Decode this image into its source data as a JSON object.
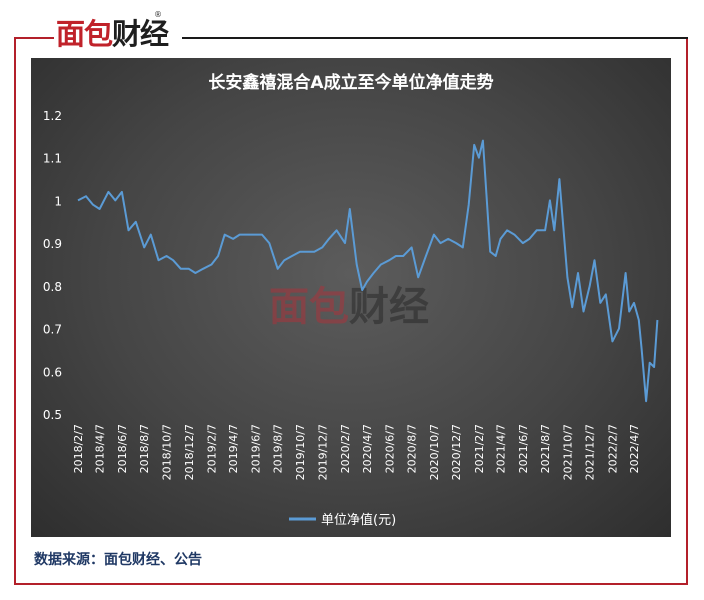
{
  "logo": {
    "part1": "面包",
    "part2": "财经",
    "reg": "®"
  },
  "watermark": {
    "part1": "面包",
    "part2": "财经"
  },
  "source_text": "数据来源：面包财经、公告",
  "colors": {
    "line": "#5b9bd5",
    "frame": "#b3202a",
    "accent": "#c0222a"
  },
  "chart_data": {
    "type": "line",
    "title": "长安鑫禧混合A成立至今单位净值走势",
    "xlabel": "",
    "ylabel": "",
    "ylim": [
      0.5,
      1.2
    ],
    "yticks": [
      "0.5",
      "0.6",
      "0.7",
      "0.8",
      "0.9",
      "1",
      "1.1",
      "1.2"
    ],
    "grid": false,
    "legend_position": "bottom",
    "xticks": [
      "2018/2/7",
      "2018/4/7",
      "2018/6/7",
      "2018/8/7",
      "2018/10/7",
      "2018/12/7",
      "2019/2/7",
      "2019/4/7",
      "2019/6/7",
      "2019/8/7",
      "2019/10/7",
      "2019/12/7",
      "2020/2/7",
      "2020/4/7",
      "2020/6/7",
      "2020/8/7",
      "2020/10/7",
      "2020/12/7",
      "2021/2/7",
      "2021/4/7",
      "2021/6/7",
      "2021/8/7",
      "2021/10/7",
      "2021/12/7",
      "2022/2/7",
      "2022/4/7"
    ],
    "series": [
      {
        "name": "单位净值(元)",
        "x": [
          "2018/2/7",
          "2018/3/1",
          "2018/3/20",
          "2018/4/7",
          "2018/5/1",
          "2018/5/20",
          "2018/6/7",
          "2018/6/25",
          "2018/7/15",
          "2018/8/7",
          "2018/8/25",
          "2018/9/15",
          "2018/10/7",
          "2018/10/25",
          "2018/11/15",
          "2018/12/7",
          "2018/12/25",
          "2019/1/15",
          "2019/2/7",
          "2019/2/25",
          "2019/3/15",
          "2019/4/7",
          "2019/4/25",
          "2019/5/15",
          "2019/6/7",
          "2019/6/25",
          "2019/7/15",
          "2019/8/7",
          "2019/8/25",
          "2019/9/15",
          "2019/10/7",
          "2019/10/25",
          "2019/11/15",
          "2019/12/7",
          "2019/12/25",
          "2020/1/15",
          "2020/2/7",
          "2020/2/20",
          "2020/3/10",
          "2020/3/25",
          "2020/4/7",
          "2020/4/25",
          "2020/5/15",
          "2020/6/7",
          "2020/6/25",
          "2020/7/15",
          "2020/8/7",
          "2020/8/25",
          "2020/9/15",
          "2020/10/7",
          "2020/10/25",
          "2020/11/15",
          "2020/12/7",
          "2020/12/25",
          "2021/1/10",
          "2021/1/25",
          "2021/2/7",
          "2021/2/18",
          "2021/3/10",
          "2021/3/25",
          "2021/4/7",
          "2021/4/25",
          "2021/5/15",
          "2021/6/7",
          "2021/6/25",
          "2021/7/15",
          "2021/8/7",
          "2021/8/20",
          "2021/9/1",
          "2021/9/15",
          "2021/10/7",
          "2021/10/20",
          "2021/11/5",
          "2021/11/20",
          "2021/12/7",
          "2021/12/20",
          "2022/1/5",
          "2022/1/20",
          "2022/2/7",
          "2022/2/25",
          "2022/3/15",
          "2022/3/25",
          "2022/4/7",
          "2022/4/20",
          "2022/4/28",
          "2022/5/10",
          "2022/5/20",
          "2022/6/1",
          "2022/6/10"
        ],
        "values": [
          1.0,
          1.01,
          0.99,
          0.98,
          1.02,
          1.0,
          1.02,
          0.93,
          0.95,
          0.89,
          0.92,
          0.86,
          0.87,
          0.86,
          0.84,
          0.84,
          0.83,
          0.84,
          0.85,
          0.87,
          0.92,
          0.91,
          0.92,
          0.92,
          0.92,
          0.92,
          0.9,
          0.84,
          0.86,
          0.87,
          0.88,
          0.88,
          0.88,
          0.89,
          0.91,
          0.93,
          0.9,
          0.98,
          0.85,
          0.79,
          0.81,
          0.83,
          0.85,
          0.86,
          0.87,
          0.87,
          0.89,
          0.82,
          0.87,
          0.92,
          0.9,
          0.91,
          0.9,
          0.89,
          0.99,
          1.13,
          1.1,
          1.14,
          0.88,
          0.87,
          0.91,
          0.93,
          0.92,
          0.9,
          0.91,
          0.93,
          0.93,
          1.0,
          0.93,
          1.05,
          0.82,
          0.75,
          0.83,
          0.74,
          0.8,
          0.86,
          0.76,
          0.78,
          0.67,
          0.7,
          0.83,
          0.74,
          0.76,
          0.72,
          0.65,
          0.53,
          0.62,
          0.61,
          0.72
        ]
      }
    ]
  }
}
